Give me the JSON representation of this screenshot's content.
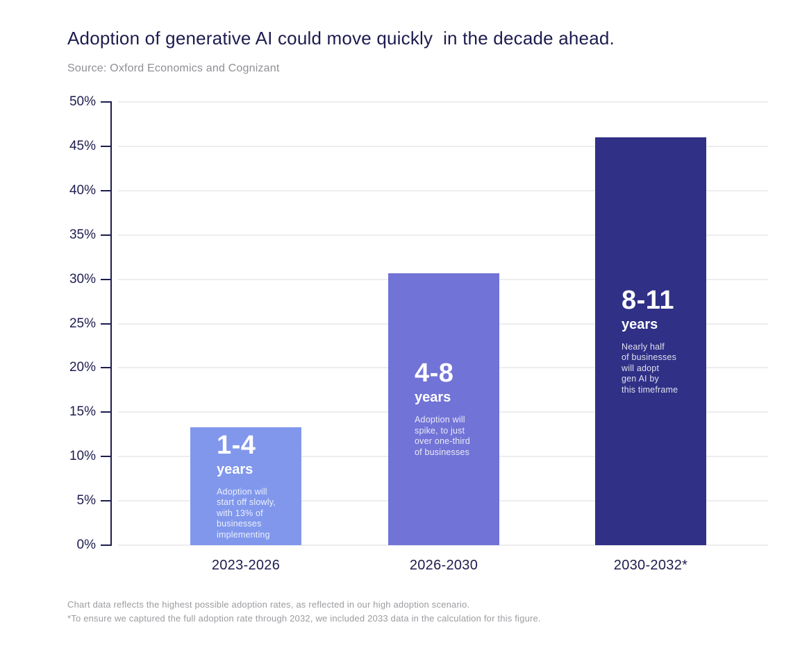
{
  "header": {
    "title": "Adoption of generative AI could move quickly  in the decade ahead.",
    "source": "Source: Oxford Economics and Cognizant"
  },
  "footnotes": [
    "Chart data reflects the highest possible adoption rates, as reflected in our high adoption scenario.",
    "*To ensure we captured the full adoption rate through 2032, we included 2033 data in the calculation for this figure."
  ],
  "chart_data": {
    "type": "bar",
    "title": "Adoption of generative AI could move quickly  in the decade ahead.",
    "xlabel": "",
    "ylabel": "",
    "ylim": [
      0,
      50
    ],
    "grid": "horizontal",
    "ytick_labels": [
      "0%",
      "5%",
      "10%",
      "15%",
      "20%",
      "25%",
      "30%",
      "35%",
      "40%",
      "45%",
      "50%"
    ],
    "categories": [
      "2023-2026",
      "2026-2030",
      "2030-2032*"
    ],
    "values": [
      13.3,
      30.7,
      46.0
    ],
    "bars": [
      {
        "category": "2023-2026",
        "value": 13.3,
        "color": "#8097EC",
        "range": "1-4",
        "unit": "years",
        "description": "Adoption will\nstart off slowly,\nwith 13% of\nbusinesses\nimplementing"
      },
      {
        "category": "2026-2030",
        "value": 30.7,
        "color": "#7173D6",
        "range": "4-8",
        "unit": "years",
        "description": "Adoption will\nspike, to just\nover one-third\nof businesses"
      },
      {
        "category": "2030-2032*",
        "value": 46.0,
        "color": "#2F3086",
        "range": "8-11",
        "unit": "years",
        "description": "Nearly half\nof businesses\nwill adopt\ngen AI by\nthis timeframe"
      }
    ]
  }
}
